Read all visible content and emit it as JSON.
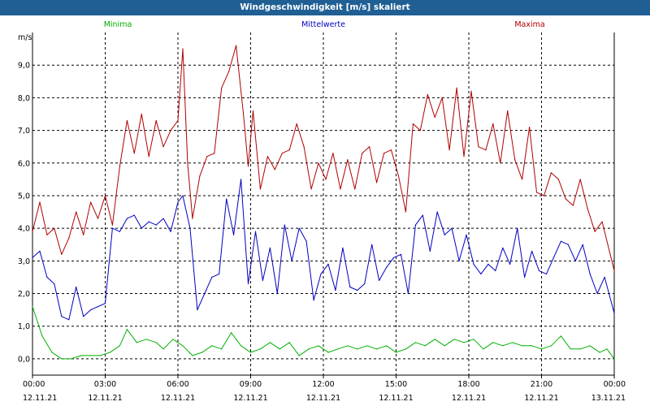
{
  "window": {
    "title": "Windgeschwindigkeit [m/s] skaliert"
  },
  "chart_data": {
    "type": "line",
    "title": "Windgeschwindigkeit [m/s] skaliert",
    "ylabel": "m/s",
    "ylim": [
      -0.5,
      10.0
    ],
    "yticks": [
      0.0,
      1.0,
      2.0,
      3.0,
      4.0,
      5.0,
      6.0,
      7.0,
      8.0,
      9.0
    ],
    "ytick_labels": [
      "0,0",
      "1,0",
      "2,0",
      "3,0",
      "4,0",
      "5,0",
      "6,0",
      "7,0",
      "8,0",
      "9,0"
    ],
    "xlim": [
      0,
      24
    ],
    "xticks": [
      {
        "time": "00:00",
        "date": "12.11.21",
        "h": 0
      },
      {
        "time": "03:00",
        "date": "12.11.21",
        "h": 3
      },
      {
        "time": "06:00",
        "date": "12.11.21",
        "h": 6
      },
      {
        "time": "09:00",
        "date": "12.11.21",
        "h": 9
      },
      {
        "time": "12:00",
        "date": "12.11.21",
        "h": 12
      },
      {
        "time": "15:00",
        "date": "12.11.21",
        "h": 15
      },
      {
        "time": "18:00",
        "date": "12.11.21",
        "h": 18
      },
      {
        "time": "21:00",
        "date": "12.11.21",
        "h": 21
      },
      {
        "time": "00:00",
        "date": "13.11.21",
        "h": 24
      }
    ],
    "grid": true,
    "legend_placement": "top",
    "series": [
      {
        "name": "Minima",
        "color": "#00b000",
        "points": [
          [
            0,
            1.6
          ],
          [
            0.4,
            0.7
          ],
          [
            0.8,
            0.2
          ],
          [
            1.2,
            0.0
          ],
          [
            1.6,
            0.0
          ],
          [
            2.0,
            0.1
          ],
          [
            2.4,
            0.1
          ],
          [
            2.8,
            0.1
          ],
          [
            3.2,
            0.2
          ],
          [
            3.6,
            0.4
          ],
          [
            3.9,
            0.9
          ],
          [
            4.3,
            0.5
          ],
          [
            4.7,
            0.6
          ],
          [
            5.1,
            0.5
          ],
          [
            5.4,
            0.3
          ],
          [
            5.8,
            0.6
          ],
          [
            6.2,
            0.4
          ],
          [
            6.6,
            0.1
          ],
          [
            7.0,
            0.2
          ],
          [
            7.4,
            0.4
          ],
          [
            7.8,
            0.3
          ],
          [
            8.2,
            0.8
          ],
          [
            8.6,
            0.4
          ],
          [
            9.0,
            0.2
          ],
          [
            9.4,
            0.3
          ],
          [
            9.8,
            0.5
          ],
          [
            10.2,
            0.3
          ],
          [
            10.6,
            0.5
          ],
          [
            11.0,
            0.1
          ],
          [
            11.4,
            0.3
          ],
          [
            11.8,
            0.4
          ],
          [
            12.2,
            0.2
          ],
          [
            12.6,
            0.3
          ],
          [
            13.0,
            0.4
          ],
          [
            13.4,
            0.3
          ],
          [
            13.8,
            0.4
          ],
          [
            14.2,
            0.3
          ],
          [
            14.6,
            0.4
          ],
          [
            15.0,
            0.2
          ],
          [
            15.4,
            0.3
          ],
          [
            15.8,
            0.5
          ],
          [
            16.2,
            0.4
          ],
          [
            16.6,
            0.6
          ],
          [
            17.0,
            0.4
          ],
          [
            17.4,
            0.6
          ],
          [
            17.8,
            0.5
          ],
          [
            18.2,
            0.6
          ],
          [
            18.6,
            0.3
          ],
          [
            19.0,
            0.5
          ],
          [
            19.4,
            0.4
          ],
          [
            19.8,
            0.5
          ],
          [
            20.2,
            0.4
          ],
          [
            20.6,
            0.4
          ],
          [
            21.0,
            0.3
          ],
          [
            21.4,
            0.4
          ],
          [
            21.8,
            0.7
          ],
          [
            22.2,
            0.3
          ],
          [
            22.6,
            0.3
          ],
          [
            23.0,
            0.4
          ],
          [
            23.4,
            0.2
          ],
          [
            23.7,
            0.3
          ],
          [
            24.0,
            0.0
          ]
        ]
      },
      {
        "name": "Mittelwerte",
        "color": "#0000c0",
        "points": [
          [
            0,
            3.1
          ],
          [
            0.3,
            3.3
          ],
          [
            0.6,
            2.5
          ],
          [
            0.9,
            2.3
          ],
          [
            1.2,
            1.3
          ],
          [
            1.5,
            1.2
          ],
          [
            1.8,
            2.2
          ],
          [
            2.1,
            1.3
          ],
          [
            2.4,
            1.5
          ],
          [
            2.7,
            1.6
          ],
          [
            3.0,
            1.7
          ],
          [
            3.3,
            4.0
          ],
          [
            3.6,
            3.9
          ],
          [
            3.9,
            4.3
          ],
          [
            4.2,
            4.4
          ],
          [
            4.5,
            4.0
          ],
          [
            4.8,
            4.2
          ],
          [
            5.1,
            4.1
          ],
          [
            5.4,
            4.3
          ],
          [
            5.7,
            3.9
          ],
          [
            6.0,
            4.8
          ],
          [
            6.2,
            5.0
          ],
          [
            6.5,
            4.0
          ],
          [
            6.8,
            1.5
          ],
          [
            7.1,
            2.0
          ],
          [
            7.4,
            2.5
          ],
          [
            7.7,
            2.6
          ],
          [
            8.0,
            4.9
          ],
          [
            8.3,
            3.8
          ],
          [
            8.6,
            5.5
          ],
          [
            8.9,
            2.3
          ],
          [
            9.2,
            3.9
          ],
          [
            9.5,
            2.4
          ],
          [
            9.8,
            3.4
          ],
          [
            10.1,
            2.0
          ],
          [
            10.4,
            4.1
          ],
          [
            10.7,
            3.0
          ],
          [
            11.0,
            4.0
          ],
          [
            11.3,
            3.6
          ],
          [
            11.6,
            1.8
          ],
          [
            11.9,
            2.6
          ],
          [
            12.2,
            2.9
          ],
          [
            12.5,
            2.1
          ],
          [
            12.8,
            3.4
          ],
          [
            13.1,
            2.2
          ],
          [
            13.4,
            2.1
          ],
          [
            13.7,
            2.3
          ],
          [
            14.0,
            3.5
          ],
          [
            14.3,
            2.4
          ],
          [
            14.6,
            2.8
          ],
          [
            14.9,
            3.1
          ],
          [
            15.2,
            3.2
          ],
          [
            15.5,
            2.0
          ],
          [
            15.8,
            4.1
          ],
          [
            16.1,
            4.4
          ],
          [
            16.4,
            3.3
          ],
          [
            16.7,
            4.5
          ],
          [
            17.0,
            3.8
          ],
          [
            17.3,
            4.0
          ],
          [
            17.6,
            3.0
          ],
          [
            17.9,
            3.8
          ],
          [
            18.2,
            2.9
          ],
          [
            18.5,
            2.6
          ],
          [
            18.8,
            2.9
          ],
          [
            19.1,
            2.7
          ],
          [
            19.4,
            3.4
          ],
          [
            19.7,
            2.9
          ],
          [
            20.0,
            4.0
          ],
          [
            20.3,
            2.5
          ],
          [
            20.6,
            3.3
          ],
          [
            20.9,
            2.7
          ],
          [
            21.2,
            2.6
          ],
          [
            21.5,
            3.1
          ],
          [
            21.8,
            3.6
          ],
          [
            22.1,
            3.5
          ],
          [
            22.4,
            3.0
          ],
          [
            22.7,
            3.5
          ],
          [
            23.0,
            2.6
          ],
          [
            23.3,
            2.0
          ],
          [
            23.6,
            2.5
          ],
          [
            24.0,
            1.4
          ]
        ]
      },
      {
        "name": "Maxima",
        "color": "#b00000",
        "points": [
          [
            0,
            3.9
          ],
          [
            0.3,
            4.8
          ],
          [
            0.6,
            3.8
          ],
          [
            0.9,
            4.0
          ],
          [
            1.2,
            3.2
          ],
          [
            1.5,
            3.7
          ],
          [
            1.8,
            4.5
          ],
          [
            2.1,
            3.8
          ],
          [
            2.4,
            4.8
          ],
          [
            2.7,
            4.3
          ],
          [
            3.0,
            5.0
          ],
          [
            3.3,
            4.1
          ],
          [
            3.6,
            5.9
          ],
          [
            3.9,
            7.3
          ],
          [
            4.2,
            6.3
          ],
          [
            4.5,
            7.5
          ],
          [
            4.8,
            6.2
          ],
          [
            5.1,
            7.3
          ],
          [
            5.4,
            6.5
          ],
          [
            5.7,
            7.0
          ],
          [
            6.0,
            7.3
          ],
          [
            6.2,
            9.5
          ],
          [
            6.4,
            6.0
          ],
          [
            6.6,
            4.3
          ],
          [
            6.9,
            5.6
          ],
          [
            7.2,
            6.2
          ],
          [
            7.5,
            6.3
          ],
          [
            7.8,
            8.3
          ],
          [
            8.1,
            8.8
          ],
          [
            8.4,
            9.6
          ],
          [
            8.7,
            7.5
          ],
          [
            8.9,
            5.9
          ],
          [
            9.1,
            7.6
          ],
          [
            9.4,
            5.2
          ],
          [
            9.7,
            6.2
          ],
          [
            10.0,
            5.8
          ],
          [
            10.3,
            6.3
          ],
          [
            10.6,
            6.4
          ],
          [
            10.9,
            7.2
          ],
          [
            11.2,
            6.5
          ],
          [
            11.5,
            5.2
          ],
          [
            11.8,
            6.0
          ],
          [
            12.1,
            5.5
          ],
          [
            12.4,
            6.3
          ],
          [
            12.7,
            5.2
          ],
          [
            13.0,
            6.1
          ],
          [
            13.3,
            5.2
          ],
          [
            13.6,
            6.3
          ],
          [
            13.9,
            6.5
          ],
          [
            14.2,
            5.4
          ],
          [
            14.5,
            6.3
          ],
          [
            14.8,
            6.4
          ],
          [
            15.1,
            5.6
          ],
          [
            15.4,
            4.5
          ],
          [
            15.7,
            7.2
          ],
          [
            16.0,
            7.0
          ],
          [
            16.3,
            8.1
          ],
          [
            16.6,
            7.4
          ],
          [
            16.9,
            8.0
          ],
          [
            17.2,
            6.4
          ],
          [
            17.5,
            8.3
          ],
          [
            17.8,
            6.2
          ],
          [
            18.1,
            8.2
          ],
          [
            18.4,
            6.5
          ],
          [
            18.7,
            6.4
          ],
          [
            19.0,
            7.2
          ],
          [
            19.3,
            6.0
          ],
          [
            19.6,
            7.6
          ],
          [
            19.9,
            6.1
          ],
          [
            20.2,
            5.5
          ],
          [
            20.5,
            7.1
          ],
          [
            20.8,
            5.1
          ],
          [
            21.1,
            5.0
          ],
          [
            21.4,
            5.7
          ],
          [
            21.7,
            5.5
          ],
          [
            22.0,
            4.9
          ],
          [
            22.3,
            4.7
          ],
          [
            22.6,
            5.5
          ],
          [
            22.9,
            4.6
          ],
          [
            23.2,
            3.9
          ],
          [
            23.5,
            4.2
          ],
          [
            24.0,
            2.7
          ]
        ]
      }
    ]
  }
}
